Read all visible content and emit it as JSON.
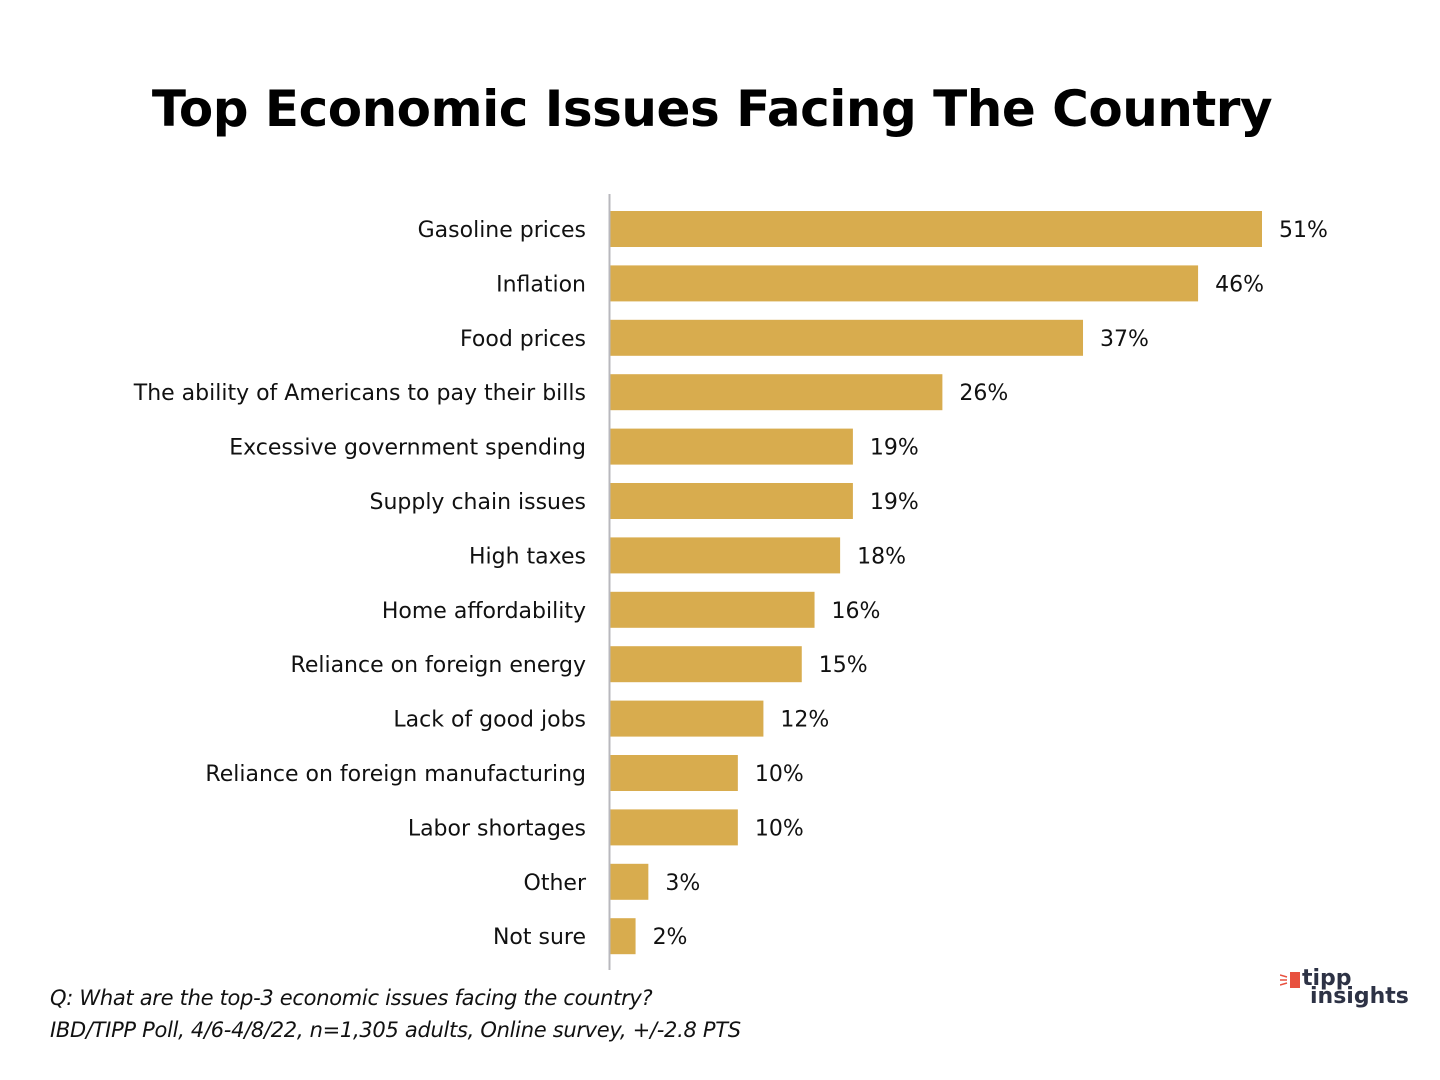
{
  "chart_data": {
    "type": "bar",
    "orientation": "horizontal",
    "title": "Top Economic Issues Facing The Country",
    "xlabel": "",
    "ylabel": "",
    "xlim": [
      0,
      51
    ],
    "grid": false,
    "bar_color": "#D8AC4E",
    "axis_color": "#B8B8BE",
    "categories": [
      "Gasoline prices",
      "Inflation",
      "Food prices",
      "The ability of Americans to pay their bills",
      "Excessive government spending",
      "Supply chain issues",
      "High taxes",
      "Home affordability",
      "Reliance on foreign energy",
      "Lack of good jobs",
      "Reliance on foreign manufacturing",
      "Labor shortages",
      "Other",
      "Not sure"
    ],
    "values": [
      51,
      46,
      37,
      26,
      19,
      19,
      18,
      16,
      15,
      12,
      10,
      10,
      3,
      2
    ],
    "value_labels": [
      "51%",
      "46%",
      "37%",
      "26%",
      "19%",
      "19%",
      "18%",
      "16%",
      "15%",
      "12%",
      "10%",
      "10%",
      "3%",
      "2%"
    ],
    "value_suffix": "%"
  },
  "footnote": {
    "question": "Q:  What are the top-3 economic issues facing the country?",
    "source": "IBD/TIPP Poll, 4/6-4/8/22, n=1,305 adults, Online survey, +/-2.8 PTS"
  },
  "logo": {
    "line1": "tipp",
    "line2": "insights",
    "accent_color": "#E8513F",
    "text_color": "#2D3245"
  }
}
